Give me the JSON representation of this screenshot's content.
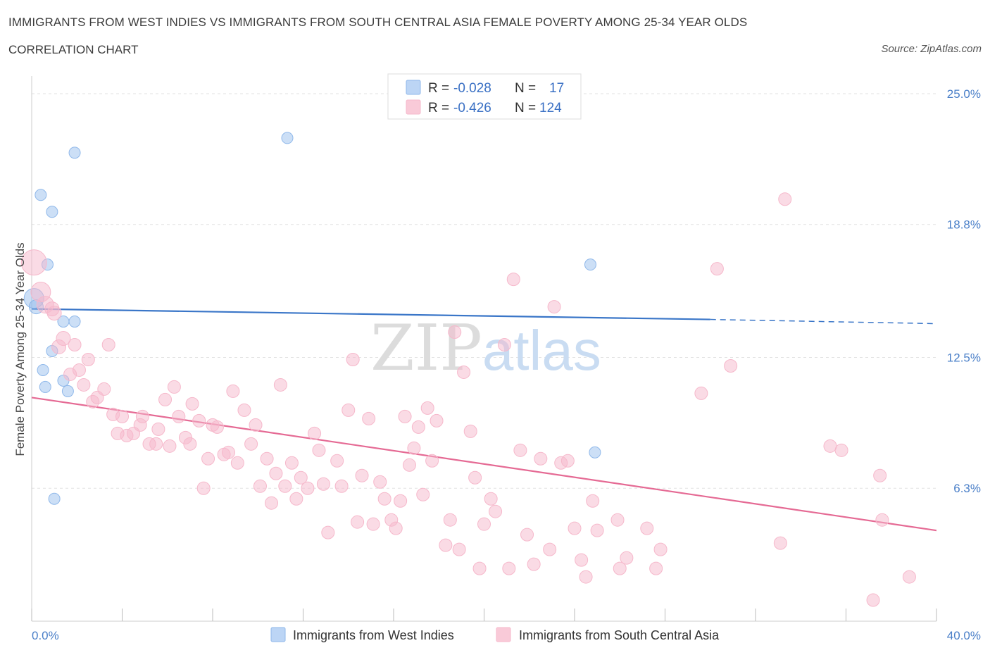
{
  "header": {
    "title": "IMMIGRANTS FROM WEST INDIES VS IMMIGRANTS FROM SOUTH CENTRAL ASIA FEMALE POVERTY AMONG 25-34 YEAR OLDS",
    "subtitle": "CORRELATION CHART",
    "source": "Source: ZipAtlas.com"
  },
  "chart_data": {
    "type": "scatter",
    "ylabel": "Female Poverty Among 25-34 Year Olds",
    "xlim": [
      0,
      40
    ],
    "ylim": [
      0,
      25.5
    ],
    "x_tick_labels": [
      "0.0%",
      "40.0%"
    ],
    "y_ticks": [
      6.3,
      12.5,
      18.8,
      25.0
    ],
    "y_tick_labels": [
      "6.3%",
      "12.5%",
      "18.8%",
      "25.0%"
    ],
    "grid": true,
    "legend_placement": "top-center",
    "legend": [
      {
        "r_label": "R = ",
        "r_value": "-0.028",
        "n_label": "N = ",
        "n_value": "17"
      },
      {
        "r_label": "R = ",
        "r_value": "-0.426",
        "n_label": "N = ",
        "n_value": "124"
      }
    ],
    "watermark": "ZIPatlas",
    "series": [
      {
        "name": "Immigrants from West Indies",
        "color": "#8fb8ea",
        "line_color": "#3a76c8",
        "trend": {
          "x0": 0,
          "y0": 14.8,
          "x1": 30,
          "y1": 14.3,
          "dash_to": 40,
          "dash_y": 14.1
        },
        "points": [
          [
            0.1,
            15.3,
            14
          ],
          [
            0.2,
            14.9,
            10
          ],
          [
            0.4,
            20.2,
            8
          ],
          [
            0.9,
            19.4,
            8
          ],
          [
            1.9,
            22.2,
            8
          ],
          [
            0.7,
            16.9,
            8
          ],
          [
            1.4,
            14.2,
            8
          ],
          [
            1.9,
            14.2,
            8
          ],
          [
            0.9,
            12.8,
            8
          ],
          [
            0.5,
            11.9,
            8
          ],
          [
            0.6,
            11.1,
            8
          ],
          [
            1.4,
            11.4,
            8
          ],
          [
            1.6,
            10.9,
            8
          ],
          [
            1.0,
            5.8,
            8
          ],
          [
            11.3,
            22.9,
            8
          ],
          [
            24.7,
            16.9,
            8
          ],
          [
            24.9,
            8.0,
            8
          ]
        ]
      },
      {
        "name": "Immigrants from South Central Asia",
        "color": "#f6b8cb",
        "line_color": "#e56a94",
        "trend": {
          "x0": 0,
          "y0": 10.6,
          "x1": 40,
          "y1": 4.3
        },
        "points": [
          [
            0.1,
            17.0,
            18
          ],
          [
            0.4,
            15.6,
            14
          ],
          [
            0.6,
            15.0,
            12
          ],
          [
            0.9,
            14.8,
            10
          ],
          [
            1.0,
            14.6,
            10
          ],
          [
            1.2,
            13.0,
            10
          ],
          [
            1.4,
            13.4,
            10
          ],
          [
            1.9,
            13.1,
            9
          ],
          [
            2.1,
            11.9,
            9
          ],
          [
            1.7,
            11.7,
            9
          ],
          [
            2.5,
            12.4,
            9
          ],
          [
            2.3,
            11.2,
            9
          ],
          [
            2.9,
            10.6,
            9
          ],
          [
            2.7,
            10.4,
            9
          ],
          [
            3.2,
            11.0,
            9
          ],
          [
            3.4,
            13.1,
            9
          ],
          [
            3.6,
            9.8,
            9
          ],
          [
            4.0,
            9.7,
            9
          ],
          [
            3.8,
            8.9,
            9
          ],
          [
            4.2,
            8.8,
            9
          ],
          [
            4.5,
            8.9,
            9
          ],
          [
            4.8,
            9.3,
            9
          ],
          [
            4.9,
            9.7,
            9
          ],
          [
            5.2,
            8.4,
            9
          ],
          [
            5.5,
            8.4,
            9
          ],
          [
            5.6,
            9.1,
            9
          ],
          [
            5.9,
            10.5,
            9
          ],
          [
            6.1,
            8.3,
            9
          ],
          [
            6.3,
            11.1,
            9
          ],
          [
            6.5,
            9.7,
            9
          ],
          [
            6.8,
            8.7,
            9
          ],
          [
            7.0,
            8.4,
            9
          ],
          [
            7.1,
            10.3,
            9
          ],
          [
            7.4,
            9.5,
            9
          ],
          [
            7.6,
            6.3,
            9
          ],
          [
            7.8,
            7.7,
            9
          ],
          [
            8.0,
            9.3,
            9
          ],
          [
            8.2,
            9.2,
            9
          ],
          [
            8.5,
            7.9,
            9
          ],
          [
            8.7,
            8.0,
            9
          ],
          [
            8.9,
            10.9,
            9
          ],
          [
            9.1,
            7.5,
            9
          ],
          [
            9.4,
            10.0,
            9
          ],
          [
            9.7,
            8.4,
            9
          ],
          [
            9.9,
            9.3,
            9
          ],
          [
            10.1,
            6.4,
            9
          ],
          [
            10.4,
            7.7,
            9
          ],
          [
            10.6,
            5.6,
            9
          ],
          [
            10.8,
            7.0,
            9
          ],
          [
            11.0,
            11.2,
            9
          ],
          [
            11.2,
            6.4,
            9
          ],
          [
            11.5,
            7.5,
            9
          ],
          [
            11.7,
            5.8,
            9
          ],
          [
            11.9,
            6.8,
            9
          ],
          [
            12.2,
            6.3,
            9
          ],
          [
            12.5,
            8.9,
            9
          ],
          [
            12.7,
            8.1,
            9
          ],
          [
            12.9,
            6.5,
            9
          ],
          [
            13.1,
            4.2,
            9
          ],
          [
            13.5,
            7.6,
            9
          ],
          [
            13.7,
            6.4,
            9
          ],
          [
            14.0,
            10.0,
            9
          ],
          [
            14.2,
            12.4,
            9
          ],
          [
            14.4,
            4.7,
            9
          ],
          [
            14.6,
            6.9,
            9
          ],
          [
            14.9,
            9.6,
            9
          ],
          [
            15.1,
            4.6,
            9
          ],
          [
            15.4,
            6.6,
            9
          ],
          [
            15.6,
            5.8,
            9
          ],
          [
            15.9,
            4.8,
            9
          ],
          [
            16.1,
            4.4,
            9
          ],
          [
            16.3,
            5.7,
            9
          ],
          [
            16.5,
            9.7,
            9
          ],
          [
            16.7,
            7.4,
            9
          ],
          [
            16.9,
            8.2,
            9
          ],
          [
            17.1,
            9.2,
            9
          ],
          [
            17.3,
            6.0,
            9
          ],
          [
            17.5,
            10.1,
            9
          ],
          [
            17.7,
            7.6,
            9
          ],
          [
            17.9,
            9.5,
            9
          ],
          [
            18.3,
            3.6,
            9
          ],
          [
            18.5,
            4.8,
            9
          ],
          [
            18.7,
            13.7,
            9
          ],
          [
            18.9,
            3.4,
            9
          ],
          [
            19.1,
            11.8,
            9
          ],
          [
            19.4,
            9.0,
            9
          ],
          [
            19.6,
            6.8,
            9
          ],
          [
            19.8,
            2.5,
            9
          ],
          [
            20.0,
            4.6,
            9
          ],
          [
            20.3,
            5.8,
            9
          ],
          [
            20.5,
            5.2,
            9
          ],
          [
            20.9,
            13.1,
            9
          ],
          [
            21.1,
            2.5,
            9
          ],
          [
            21.3,
            16.2,
            9
          ],
          [
            21.6,
            8.1,
            9
          ],
          [
            21.9,
            4.1,
            9
          ],
          [
            22.2,
            2.7,
            9
          ],
          [
            22.5,
            7.7,
            9
          ],
          [
            22.9,
            3.4,
            9
          ],
          [
            23.1,
            14.9,
            9
          ],
          [
            23.4,
            7.5,
            9
          ],
          [
            23.7,
            7.6,
            9
          ],
          [
            24.0,
            4.4,
            9
          ],
          [
            24.3,
            2.9,
            9
          ],
          [
            24.5,
            2.1,
            9
          ],
          [
            24.8,
            5.7,
            9
          ],
          [
            25.0,
            4.3,
            9
          ],
          [
            25.9,
            4.8,
            9
          ],
          [
            26.0,
            2.5,
            9
          ],
          [
            27.2,
            4.4,
            9
          ],
          [
            27.8,
            3.4,
            9
          ],
          [
            29.6,
            10.8,
            9
          ],
          [
            30.3,
            16.7,
            9
          ],
          [
            30.9,
            12.1,
            9
          ],
          [
            33.1,
            3.7,
            9
          ],
          [
            33.3,
            20.0,
            9
          ],
          [
            35.3,
            8.3,
            9
          ],
          [
            35.8,
            8.1,
            9
          ],
          [
            37.5,
            6.9,
            9
          ],
          [
            37.6,
            4.8,
            9
          ],
          [
            37.2,
            1.0,
            9
          ],
          [
            38.8,
            2.1,
            9
          ],
          [
            27.6,
            2.5,
            9
          ],
          [
            26.3,
            3.0,
            9
          ]
        ]
      }
    ]
  }
}
